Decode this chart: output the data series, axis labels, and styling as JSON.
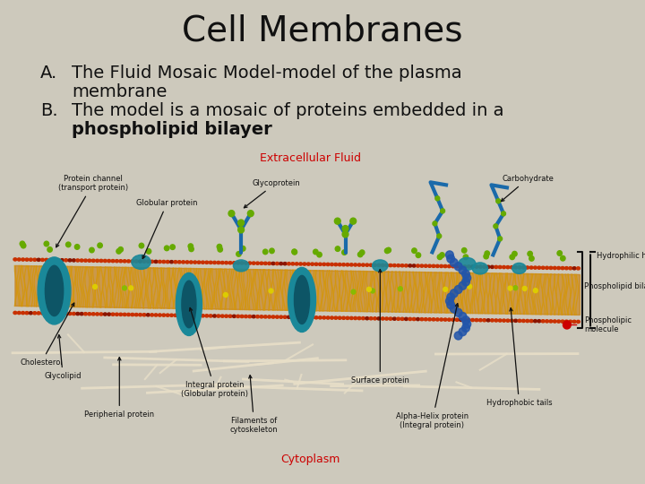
{
  "background_color": "#cdc9bc",
  "title": "Cell Membranes",
  "title_fontsize": 28,
  "title_color": "#111111",
  "bullet_A_label": "A.",
  "bullet_A_line1": "The Fluid Mosaic Model-model of the plasma",
  "bullet_A_line2": "membrane",
  "bullet_B_label": "B.",
  "bullet_B_line1": "The model is a mosaic of proteins embedded in a",
  "bullet_B_line2": "phospholipid bilayer",
  "bullet_fontsize": 14,
  "bullet_color": "#111111",
  "extracellular_label": "Extracellular Fluid",
  "extracellular_color": "#cc0000",
  "cytoplasm_label": "Cytoplasm",
  "cytoplasm_color": "#cc0000",
  "head_color": "#c83000",
  "head_color2": "#8b1500",
  "tail_color": "#d4960a",
  "teal_protein": "#1a8899",
  "teal_dark": "#0d5566",
  "blue_protein": "#1a6aaa",
  "green_sugar": "#66aa00",
  "white_fiber": "#e8dfc8",
  "yellow_dot": "#ddcc00",
  "red_dot": "#cc0000"
}
